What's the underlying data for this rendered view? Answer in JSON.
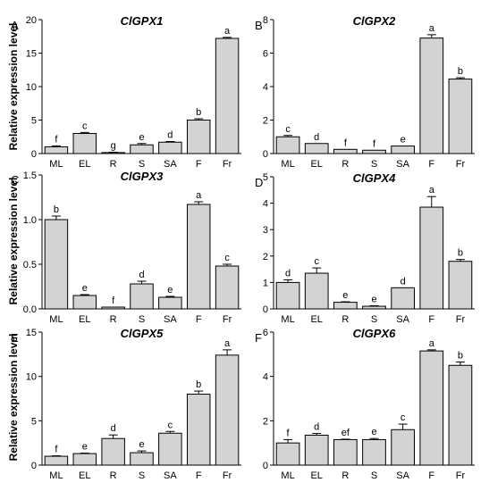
{
  "figure": {
    "ylabel": "Relative expression level"
  },
  "chart_data": [
    {
      "panel": "A",
      "type": "bar",
      "title": "ClGPX1",
      "categories": [
        "ML",
        "EL",
        "R",
        "S",
        "SA",
        "F",
        "Fr"
      ],
      "values": [
        1.0,
        3.0,
        0.15,
        1.3,
        1.7,
        5.0,
        17.2
      ],
      "errors": [
        0.15,
        0.15,
        0.05,
        0.2,
        0.1,
        0.2,
        0.15
      ],
      "letters": [
        "f",
        "c",
        "g",
        "e",
        "d",
        "b",
        "a"
      ],
      "ylabel": "Relative expression level",
      "ylim": [
        0,
        20
      ],
      "yticks": [
        0,
        5,
        10,
        15,
        20
      ],
      "grid": false
    },
    {
      "panel": "B",
      "type": "bar",
      "title": "ClGPX2",
      "categories": [
        "ML",
        "EL",
        "R",
        "S",
        "SA",
        "F",
        "Fr"
      ],
      "values": [
        1.0,
        0.6,
        0.25,
        0.2,
        0.45,
        6.9,
        4.45
      ],
      "errors": [
        0.08,
        0.0,
        0.0,
        0.0,
        0.0,
        0.2,
        0.08
      ],
      "letters": [
        "c",
        "d",
        "f",
        "f",
        "e",
        "a",
        "b"
      ],
      "ylabel": "",
      "ylim": [
        0,
        8
      ],
      "yticks": [
        0,
        2,
        4,
        6,
        8
      ],
      "grid": false
    },
    {
      "panel": "C",
      "type": "bar",
      "title": "ClGPX3",
      "categories": [
        "ML",
        "EL",
        "R",
        "S",
        "SA",
        "F",
        "Fr"
      ],
      "values": [
        1.0,
        0.15,
        0.02,
        0.28,
        0.13,
        1.17,
        0.48
      ],
      "errors": [
        0.04,
        0.01,
        0.0,
        0.03,
        0.01,
        0.03,
        0.02
      ],
      "letters": [
        "b",
        "e",
        "f",
        "d",
        "e",
        "a",
        "c"
      ],
      "ylabel": "Relative expression level",
      "ylim": [
        0,
        1.5
      ],
      "yticks": [
        "0.0",
        "0.5",
        "1.0",
        "1.5"
      ],
      "grid": false
    },
    {
      "panel": "D",
      "type": "bar",
      "title": "ClGPX4",
      "categories": [
        "ML",
        "EL",
        "R",
        "S",
        "SA",
        "F",
        "Fr"
      ],
      "values": [
        1.0,
        1.35,
        0.25,
        0.1,
        0.8,
        3.85,
        1.8
      ],
      "errors": [
        0.1,
        0.2,
        0.02,
        0.02,
        0.0,
        0.4,
        0.07
      ],
      "letters": [
        "d",
        "c",
        "e",
        "e",
        "d",
        "a",
        "b"
      ],
      "ylabel": "",
      "ylim": [
        0,
        5
      ],
      "yticks": [
        0,
        1,
        2,
        3,
        4,
        5
      ],
      "grid": false
    },
    {
      "panel": "E",
      "type": "bar",
      "title": "ClGPX5",
      "categories": [
        "ML",
        "EL",
        "R",
        "S",
        "SA",
        "F",
        "Fr"
      ],
      "values": [
        1.0,
        1.3,
        3.0,
        1.4,
        3.6,
        8.0,
        12.4
      ],
      "errors": [
        0.05,
        0.05,
        0.4,
        0.2,
        0.2,
        0.35,
        0.6
      ],
      "letters": [
        "f",
        "e",
        "d",
        "e",
        "c",
        "b",
        "a"
      ],
      "ylabel": "Relative expression level",
      "ylim": [
        0,
        15
      ],
      "yticks": [
        0,
        5,
        10,
        15
      ],
      "grid": false
    },
    {
      "panel": "F",
      "type": "bar",
      "title": "ClGPX6",
      "categories": [
        "ML",
        "EL",
        "R",
        "S",
        "SA",
        "F",
        "Fr"
      ],
      "values": [
        1.0,
        1.35,
        1.15,
        1.15,
        1.6,
        5.15,
        4.5
      ],
      "errors": [
        0.15,
        0.08,
        0.02,
        0.05,
        0.25,
        0.05,
        0.15
      ],
      "letters": [
        "f",
        "d",
        "ef",
        "e",
        "c",
        "a",
        "b"
      ],
      "ylabel": "",
      "ylim": [
        0,
        6
      ],
      "yticks": [
        0,
        2,
        4,
        6
      ],
      "grid": false
    }
  ]
}
